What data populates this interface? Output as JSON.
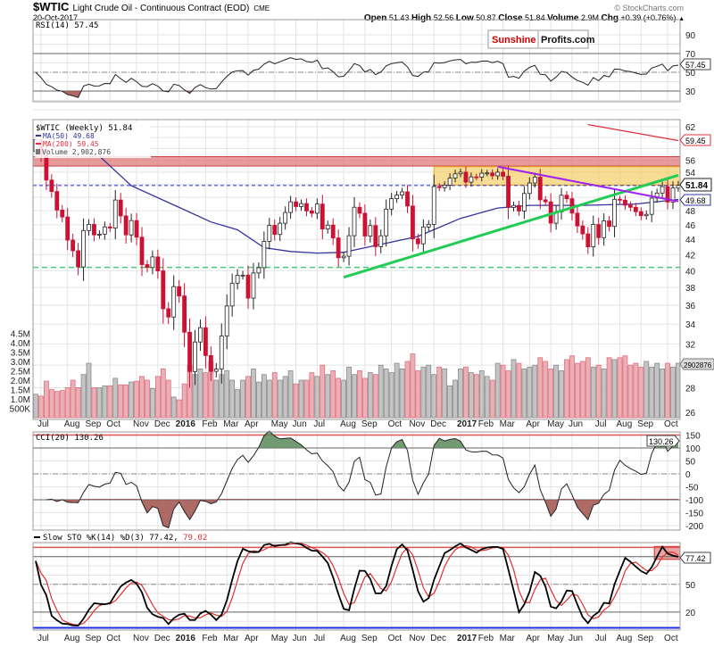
{
  "header": {
    "symbol": "$WTIC",
    "name": "Light Crude Oil - Continuous Contract (EOD)",
    "exchange": "CME",
    "date": "20-Oct-2017",
    "copyright": "© StockCharts.com",
    "quote": {
      "open_label": "Open",
      "open": "51.43",
      "high_label": "High",
      "high": "52.56",
      "low_label": "Low",
      "low": "50.87",
      "close_label": "Close",
      "close": "51.84",
      "volume_label": "Volume",
      "volume": "2.9M",
      "chg_label": "Chg",
      "chg": "+0.39 (+0.76%)",
      "arrow": "▲"
    }
  },
  "logo": {
    "part1": "Sunshine",
    "part2": "Profits.com",
    "color1": "#cc0000"
  },
  "colors": {
    "down": "#cc1133",
    "up": "#ffffff",
    "ma50": "#33339a",
    "ma200": "#e03040",
    "green_line": "#22cc55",
    "purple_line": "#a020f0",
    "blue_dash": "#1e2ee0"
  },
  "chart_data": {
    "type": "candlestick",
    "interval": "weekly",
    "start_date": "2015-06-26",
    "scale": "log",
    "ylim": [
      26,
      62
    ],
    "last_candle": {
      "open": 51.43,
      "high": 52.56,
      "low": 50.87,
      "close": 51.84
    },
    "closes": [
      59.6,
      56.9,
      52.7,
      50.9,
      48.1,
      47.1,
      43.9,
      42.5,
      40.45,
      45.2,
      46.05,
      44.6,
      44.7,
      45.7,
      45.54,
      49.6,
      47.26,
      44.6,
      46.59,
      44.29,
      40.74,
      40.39,
      41.71,
      39.97,
      35.62,
      34.73,
      38.1,
      37.04,
      33.16,
      29.42,
      32.19,
      33.62,
      30.89,
      29.44,
      29.64,
      32.78,
      35.92,
      38.5,
      39.44,
      39.46,
      36.79,
      39.72,
      40.36,
      43.73,
      45.92,
      44.66,
      46.21,
      47.75,
      49.33,
      48.62,
      49.07,
      47.98,
      47.64,
      48.99,
      45.41,
      45.95,
      44.19,
      41.6,
      41.8,
      44.49,
      48.52,
      47.64,
      44.44,
      45.88,
      43.03,
      44.48,
      48.24,
      49.81,
      50.35,
      50.85,
      48.7,
      44.07,
      43.41,
      45.69,
      46.06,
      51.68,
      51.5,
      51.9,
      53.02,
      53.72,
      53.99,
      52.37,
      53.22,
      53.17,
      53.83,
      53.86,
      53.4,
      53.99,
      53.33,
      48.49,
      48.78,
      47.97,
      50.6,
      52.24,
      53.18,
      49.62,
      49.33,
      46.22,
      47.84,
      50.33,
      49.8,
      47.66,
      45.83,
      44.74,
      43.01,
      46.04,
      44.23,
      46.54,
      45.77,
      49.71,
      49.58,
      48.82,
      48.51,
      47.87,
      47.29,
      47.48,
      49.89,
      50.66,
      51.67,
      49.29,
      51.45,
      51.84
    ],
    "volume_millions": [
      1.25,
      1.15,
      1.95,
      1.5,
      1.4,
      1.45,
      1.6,
      2.0,
      1.6,
      2.3,
      2.9,
      1.6,
      1.6,
      1.7,
      1.7,
      2.1,
      1.75,
      1.75,
      1.9,
      1.95,
      2.2,
      2.0,
      1.55,
      2.2,
      2.6,
      2.0,
      1.1,
      0.95,
      1.8,
      2.8,
      2.3,
      2.6,
      2.4,
      3.0,
      2.0,
      2.3,
      2.5,
      2.0,
      1.5,
      2.0,
      2.2,
      2.6,
      1.9,
      2.3,
      2.0,
      2.4,
      2.0,
      2.2,
      2.5,
      1.8,
      2.0,
      2.0,
      2.4,
      2.2,
      2.8,
      2.3,
      2.5,
      2.1,
      2.0,
      2.7,
      2.3,
      2.5,
      2.1,
      2.4,
      2.3,
      2.8,
      2.6,
      2.4,
      2.9,
      2.6,
      3.0,
      3.4,
      2.5,
      2.7,
      2.8,
      2.3,
      2.7,
      2.6,
      1.7,
      2.0,
      2.6,
      2.7,
      2.4,
      2.3,
      2.5,
      2.2,
      2.0,
      2.9,
      2.8,
      2.5,
      3.1,
      2.9,
      2.6,
      2.7,
      2.8,
      3.2,
      3.0,
      2.6,
      2.8,
      2.5,
      3.1,
      3.3,
      2.9,
      3.0,
      3.2,
      2.7,
      2.8,
      2.6,
      3.2,
      3.1,
      3.2,
      3.3,
      2.8,
      2.9,
      2.7,
      3.0,
      2.7,
      2.9,
      2.6,
      2.9,
      2.7,
      2.902876
    ],
    "ma50_points": [
      [
        "2015-09-18",
        56.7
      ],
      [
        "2015-10-30",
        51.8
      ],
      [
        "2015-12-31",
        48.5
      ],
      [
        "2016-02-12",
        46.4
      ],
      [
        "2016-03-18",
        45.3
      ],
      [
        "2016-04-22",
        42.9
      ],
      [
        "2016-05-27",
        42.4
      ],
      [
        "2016-07-01",
        42.2
      ],
      [
        "2016-08-05",
        42.3
      ],
      [
        "2016-11-11",
        44.4
      ],
      [
        "2017-01-06",
        46.9
      ],
      [
        "2017-02-24",
        48.4
      ],
      [
        "2017-04-07",
        48.8
      ],
      [
        "2017-06-16",
        48.8
      ],
      [
        "2017-08-25",
        49.0
      ],
      [
        "2017-10-20",
        49.68
      ]
    ],
    "ma200_points": [
      [
        "2017-06-23",
        62.4
      ],
      [
        "2017-10-20",
        59.45
      ]
    ],
    "resistance_band": {
      "low": 55.0,
      "high": 56.6
    },
    "yellow_zone": {
      "from": "2016-12-02",
      "low": 51.9,
      "high": 54.9
    },
    "hlines": {
      "close": 51.84,
      "support": 40.4
    },
    "trendlines": [
      {
        "color": "green",
        "from": [
          "2016-08-05",
          39.2
        ],
        "to": [
          "2017-10-20",
          53.5
        ]
      },
      {
        "color": "purple",
        "from": [
          "2017-02-24",
          54.9
        ],
        "to": [
          "2017-10-20",
          49.4
        ]
      }
    ],
    "sto_highlight": {
      "from": "2017-09-22",
      "to": "2017-10-20",
      "low": 77,
      "high": 91
    },
    "price_ticks": [
      62,
      56,
      54,
      48,
      46,
      44,
      42,
      40,
      38,
      36,
      34,
      32,
      28,
      26
    ],
    "volume_ticks": [
      {
        "v": 4.5,
        "label": "4.5M"
      },
      {
        "v": 4.0,
        "label": "4.0M"
      },
      {
        "v": 3.5,
        "label": "3.5M"
      },
      {
        "v": 3.0,
        "label": "3.0M"
      },
      {
        "v": 2.5,
        "label": "2.5M"
      },
      {
        "v": 2.0,
        "label": "2.0M"
      },
      {
        "v": 1.5,
        "label": "1.5M"
      },
      {
        "v": 1.0,
        "label": "1.0M"
      },
      {
        "v": 0.5,
        "label": "500K"
      }
    ],
    "month_labels": [
      "Jul",
      "Aug",
      "Sep",
      "Oct",
      "Nov",
      "Dec",
      "2016",
      "Feb",
      "Mar",
      "Apr",
      "May",
      "Jun",
      "Jul",
      "Aug",
      "Sep",
      "Oct",
      "Nov",
      "Dec",
      "2017",
      "Feb",
      "Mar",
      "Apr",
      "May",
      "Jun",
      "Jul",
      "Aug",
      "Sep",
      "Oct"
    ],
    "rsi_ticks": [
      90,
      70,
      50,
      30
    ],
    "cci_ticks": [
      150,
      100,
      50,
      0,
      -50,
      -100,
      -150,
      -200
    ],
    "sto_ticks": [
      50,
      20
    ]
  },
  "legend": {
    "price": "$WTIC (Weekly) 51.84",
    "ma50": "MA(50) 49.68",
    "ma200": "MA(200) 59.45",
    "volume": "Volume 2,902,876"
  },
  "indicators": {
    "rsi_label": "RSI(14) 57.45",
    "rsi_value": "57.45",
    "cci_label": "CCI(20) 130.26",
    "cci_value": "130.26",
    "sto_label": "Slow STO %K(14) %D(3) 77.42,",
    "sto_d": "79.02",
    "sto_value": "77.42"
  },
  "value_tags": {
    "ma200": "59.45",
    "close": "51.84",
    "ma50": "49.68",
    "volume": "2902876"
  }
}
